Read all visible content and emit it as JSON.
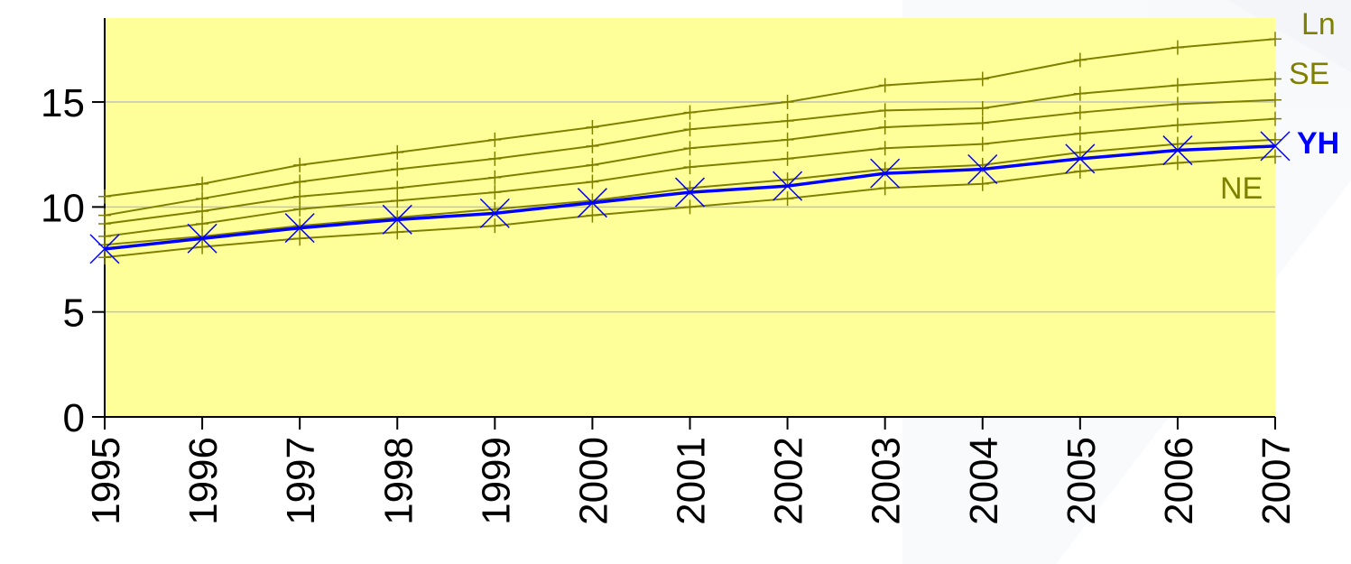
{
  "chart_data": {
    "type": "line",
    "title": "",
    "xlabel": "",
    "ylabel": "",
    "x": [
      "1995",
      "1996",
      "1997",
      "1998",
      "1999",
      "2000",
      "2001",
      "2002",
      "2003",
      "2004",
      "2005",
      "2006",
      "2007"
    ],
    "ylim": [
      0,
      19
    ],
    "yticks": [
      0,
      5,
      10,
      15
    ],
    "grid": true,
    "series": [
      {
        "name": "Ln",
        "color": "#808000",
        "values": [
          10.5,
          11.1,
          12.0,
          12.6,
          13.2,
          13.8,
          14.5,
          15.0,
          15.8,
          16.1,
          17.0,
          17.6,
          18.0
        ]
      },
      {
        "name": "SE",
        "color": "#808000",
        "values": [
          9.6,
          10.4,
          11.2,
          11.8,
          12.3,
          12.9,
          13.7,
          14.1,
          14.6,
          14.7,
          15.4,
          15.8,
          16.1
        ]
      },
      {
        "name": "",
        "color": "#808000",
        "values": [
          9.2,
          9.8,
          10.5,
          10.9,
          11.4,
          12.0,
          12.8,
          13.2,
          13.8,
          14.0,
          14.5,
          14.9,
          15.1
        ]
      },
      {
        "name": "",
        "color": "#808000",
        "values": [
          8.6,
          9.2,
          9.9,
          10.3,
          10.7,
          11.2,
          11.9,
          12.3,
          12.8,
          13.0,
          13.5,
          13.9,
          14.2
        ]
      },
      {
        "name": "",
        "color": "#808000",
        "values": [
          8.2,
          8.6,
          9.1,
          9.5,
          9.9,
          10.3,
          10.9,
          11.3,
          11.8,
          12.0,
          12.6,
          13.0,
          13.2
        ]
      },
      {
        "name": "YH",
        "color": "#0000ff",
        "values": [
          8.0,
          8.5,
          9.0,
          9.4,
          9.7,
          10.2,
          10.7,
          11.0,
          11.6,
          11.8,
          12.3,
          12.7,
          12.9
        ]
      },
      {
        "name": "NE",
        "color": "#808000",
        "values": [
          7.6,
          8.1,
          8.5,
          8.8,
          9.1,
          9.6,
          10.0,
          10.4,
          10.9,
          11.1,
          11.7,
          12.1,
          12.4
        ]
      }
    ],
    "series_labels": [
      {
        "series": "Ln",
        "text": "Ln"
      },
      {
        "series": "SE",
        "text": "SE"
      },
      {
        "series": "YH",
        "text": "YH"
      },
      {
        "series": "NE",
        "text": "NE"
      }
    ],
    "background_color": "#ffff99",
    "gridline_color": "#c0c0c0"
  }
}
